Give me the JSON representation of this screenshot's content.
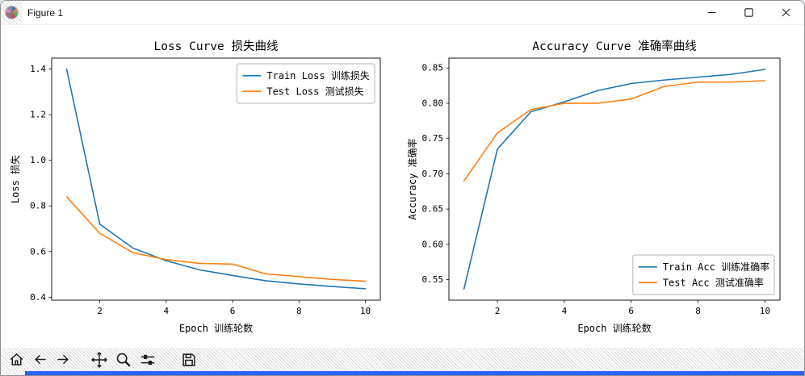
{
  "window": {
    "title": "Figure 1"
  },
  "colors": {
    "train_series": "#1f77b4",
    "test_series": "#ff7f0e",
    "taskbar_strip": "#2a62f5"
  },
  "toolbar": {
    "icons": [
      "home-icon",
      "back-icon",
      "forward-icon",
      "pan-icon",
      "zoom-icon",
      "subplots-icon",
      "save-icon"
    ]
  },
  "chart_data": [
    {
      "type": "line",
      "title": "Loss Curve 损失曲线",
      "xlabel": "Epoch 训练轮数",
      "ylabel": "Loss 损失",
      "x": [
        1,
        2,
        3,
        4,
        5,
        6,
        7,
        8,
        9,
        10
      ],
      "series": [
        {
          "name": "Train Loss 训练损失",
          "color": "#1f77b4",
          "values": [
            1.4,
            0.72,
            0.615,
            0.56,
            0.52,
            0.495,
            0.472,
            0.458,
            0.447,
            0.437
          ]
        },
        {
          "name": "Test Loss 测试损失",
          "color": "#ff7f0e",
          "values": [
            0.84,
            0.68,
            0.595,
            0.565,
            0.548,
            0.545,
            0.502,
            0.49,
            0.478,
            0.47
          ]
        }
      ],
      "xlim": [
        0.55,
        10.45
      ],
      "ylim": [
        0.387,
        1.448
      ],
      "xticks": [
        2,
        4,
        6,
        8,
        10
      ],
      "yticks": [
        0.4,
        0.6,
        0.8,
        1.0,
        1.2,
        1.4
      ],
      "yticklabels": [
        "0.4",
        "0.6",
        "0.8",
        "1.0",
        "1.2",
        "1.4"
      ],
      "legend_loc": "upper right",
      "grid": false
    },
    {
      "type": "line",
      "title": "Accuracy Curve 准确率曲线",
      "xlabel": "Epoch 训练轮数",
      "ylabel": "Accuracy 准确率",
      "x": [
        1,
        2,
        3,
        4,
        5,
        6,
        7,
        8,
        9,
        10
      ],
      "series": [
        {
          "name": "Train Acc 训练准确率",
          "color": "#1f77b4",
          "values": [
            0.537,
            0.735,
            0.788,
            0.802,
            0.818,
            0.828,
            0.833,
            0.837,
            0.841,
            0.848
          ]
        },
        {
          "name": "Test Acc 测试准确率",
          "color": "#ff7f0e",
          "values": [
            0.69,
            0.758,
            0.791,
            0.8,
            0.8,
            0.806,
            0.824,
            0.83,
            0.83,
            0.832
          ]
        }
      ],
      "xlim": [
        0.55,
        10.45
      ],
      "ylim": [
        0.521,
        0.864
      ],
      "xticks": [
        2,
        4,
        6,
        8,
        10
      ],
      "yticks": [
        0.55,
        0.6,
        0.65,
        0.7,
        0.75,
        0.8,
        0.85
      ],
      "yticklabels": [
        "0.55",
        "0.60",
        "0.65",
        "0.70",
        "0.75",
        "0.80",
        "0.85"
      ],
      "legend_loc": "lower right",
      "grid": false
    }
  ]
}
